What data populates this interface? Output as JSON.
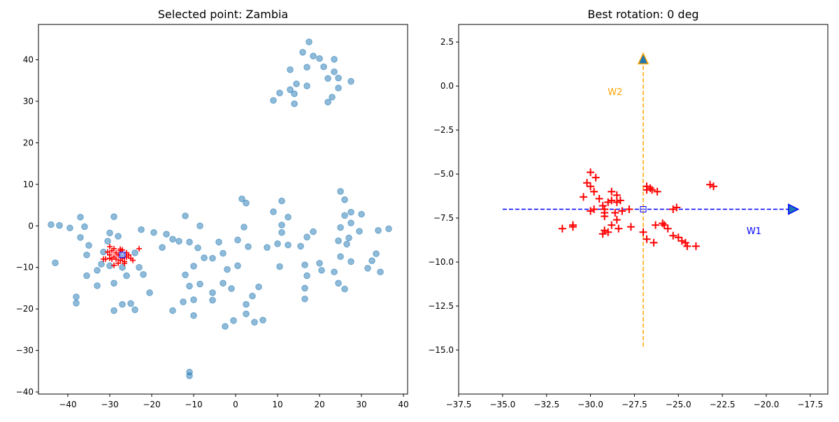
{
  "chart_data": [
    {
      "type": "scatter",
      "title": "Selected point: Zambia",
      "xlim": [
        -47,
        41
      ],
      "ylim": [
        -40.5,
        48.5
      ],
      "xticks": [
        -40,
        -30,
        -20,
        -10,
        0,
        10,
        20,
        30,
        40
      ],
      "xtick_labels": [
        "−40",
        "−30",
        "−20",
        "−10",
        "0",
        "10",
        "20",
        "30",
        "40"
      ],
      "yticks": [
        -40,
        -30,
        -20,
        -10,
        0,
        10,
        20,
        30,
        40
      ],
      "ytick_labels": [
        "−40",
        "−30",
        "−20",
        "−10",
        "0",
        "10",
        "20",
        "30",
        "40"
      ],
      "colors": {
        "points": "#1f77b4",
        "neighbors": "#ff0000",
        "selected": "#0000ff"
      },
      "series": [
        {
          "marker": "circle",
          "points": [
            [
              -44,
              0.3
            ],
            [
              -42,
              0.1
            ],
            [
              -39.5,
              -0.5
            ],
            [
              -37,
              2.1
            ],
            [
              -36,
              -0.2
            ],
            [
              -35,
              -4.7
            ],
            [
              -35.5,
              -7
            ],
            [
              -37,
              -2.8
            ],
            [
              -35.5,
              -12
            ],
            [
              -33,
              -14.4
            ],
            [
              -33,
              -10.7
            ],
            [
              -32,
              -9.2
            ],
            [
              -31.5,
              -6.3
            ],
            [
              -30.5,
              -3.7
            ],
            [
              -30,
              -1.7
            ],
            [
              -30,
              -9.6
            ],
            [
              -29,
              2.2
            ],
            [
              -29,
              -13.8
            ],
            [
              -29,
              -20.4
            ],
            [
              -28,
              -2.5
            ],
            [
              -27,
              -10
            ],
            [
              -26,
              -12
            ],
            [
              -27,
              -18.9
            ],
            [
              -25,
              -18.7
            ],
            [
              -24,
              -20.2
            ],
            [
              -23,
              -10
            ],
            [
              -22,
              -11.7
            ],
            [
              -22.5,
              -0.9
            ],
            [
              -24,
              -6.5
            ],
            [
              -20.5,
              -16.1
            ],
            [
              -19.5,
              -1.6
            ],
            [
              -17.5,
              -5.2
            ],
            [
              -16.5,
              -2
            ],
            [
              -15,
              -3.2
            ],
            [
              -15,
              -20.4
            ],
            [
              -13.5,
              -3.7
            ],
            [
              -12,
              2.4
            ],
            [
              -12.5,
              -18.3
            ],
            [
              -12,
              -11.8
            ],
            [
              -11,
              -3.9
            ],
            [
              -11,
              -14.5
            ],
            [
              -10,
              -9.7
            ],
            [
              -10,
              -17.8
            ],
            [
              -10,
              -21.6
            ],
            [
              -9,
              -5.3
            ],
            [
              -8.5,
              0
            ],
            [
              -8.5,
              -14
            ],
            [
              -7.5,
              -7.7
            ],
            [
              -5.5,
              -7.8
            ],
            [
              -5.5,
              -16.1
            ],
            [
              -5.5,
              -17.9
            ],
            [
              -4,
              -3.9
            ],
            [
              -3,
              -6.6
            ],
            [
              -3,
              -13.8
            ],
            [
              -2.5,
              -24.2
            ],
            [
              -2,
              -10.5
            ],
            [
              -1,
              -15.1
            ],
            [
              -0.5,
              -22.8
            ],
            [
              0.5,
              -9.6
            ],
            [
              0.5,
              -3.4
            ],
            [
              1.5,
              6.5
            ],
            [
              2,
              -0.3
            ],
            [
              2.5,
              5.5
            ],
            [
              3,
              -5
            ],
            [
              2.5,
              -18.9
            ],
            [
              2.5,
              -21.2
            ],
            [
              4,
              -16.9
            ],
            [
              4.5,
              -23.2
            ],
            [
              5.5,
              -14.7
            ],
            [
              6.5,
              -22.7
            ],
            [
              7.5,
              -5.2
            ],
            [
              9,
              3.4
            ],
            [
              10,
              -4.3
            ],
            [
              10.5,
              -9.8
            ],
            [
              11,
              6
            ],
            [
              11,
              0.2
            ],
            [
              11,
              -1.6
            ],
            [
              12.5,
              -4.6
            ],
            [
              12.5,
              2.1
            ],
            [
              15.5,
              -4.9
            ],
            [
              16.5,
              -9.4
            ],
            [
              16.5,
              -15
            ],
            [
              16.5,
              -17.6
            ],
            [
              17,
              -2.7
            ],
            [
              17,
              -12
            ],
            [
              18.5,
              -1.4
            ],
            [
              20,
              -9
            ],
            [
              20.5,
              -10.7
            ],
            [
              23.5,
              -11.1
            ],
            [
              24.5,
              -13.8
            ],
            [
              24.5,
              -3.6
            ],
            [
              25,
              -7.4
            ],
            [
              25,
              -0.4
            ],
            [
              25,
              8.3
            ],
            [
              26,
              -15.2
            ],
            [
              26,
              2.5
            ],
            [
              26,
              6.3
            ],
            [
              26.5,
              -4.4
            ],
            [
              27,
              -2.9
            ],
            [
              27.5,
              3.3
            ],
            [
              27.5,
              0.7
            ],
            [
              27.5,
              -8.6
            ],
            [
              29.5,
              -1.3
            ],
            [
              30,
              2.8
            ],
            [
              31.5,
              -10.2
            ],
            [
              32.5,
              -8.4
            ],
            [
              33.5,
              -6.7
            ],
            [
              34,
              -1.1
            ],
            [
              34.5,
              -11.1
            ],
            [
              36.5,
              -0.7
            ],
            [
              -11,
              -35.2
            ],
            [
              -11,
              -36.1
            ],
            [
              9,
              30.2
            ],
            [
              10.5,
              32
            ],
            [
              13,
              37.6
            ],
            [
              13,
              32.8
            ],
            [
              14,
              29.4
            ],
            [
              14,
              31.8
            ],
            [
              14.5,
              34.2
            ],
            [
              16,
              41.8
            ],
            [
              17,
              38.2
            ],
            [
              17,
              33.7
            ],
            [
              17.5,
              44.3
            ],
            [
              18.5,
              40.9
            ],
            [
              20,
              40.3
            ],
            [
              21,
              38.3
            ],
            [
              22,
              29.8
            ],
            [
              22,
              35.5
            ],
            [
              23,
              31
            ],
            [
              23.5,
              40.1
            ],
            [
              23.5,
              37.1
            ],
            [
              24.5,
              33.2
            ],
            [
              24.5,
              35.6
            ],
            [
              27.5,
              34.8
            ],
            [
              -43,
              -8.9
            ],
            [
              -38,
              -17.1
            ],
            [
              -38,
              -18.6
            ]
          ]
        },
        {
          "marker": "plus",
          "points": [
            [
              -30,
              -5
            ],
            [
              -30.5,
              -6.3
            ],
            [
              -29.5,
              -6
            ],
            [
              -29,
              -5.5
            ],
            [
              -28.5,
              -6.5
            ],
            [
              -28,
              -7
            ],
            [
              -29,
              -7.5
            ],
            [
              -29.5,
              -8
            ],
            [
              -30,
              -7
            ],
            [
              -28.5,
              -8
            ],
            [
              -27.5,
              -8.3
            ],
            [
              -27,
              -7.8
            ],
            [
              -26.5,
              -8.6
            ],
            [
              -26,
              -7.5
            ],
            [
              -25.5,
              -7
            ],
            [
              -25,
              -7.8
            ],
            [
              -24.5,
              -8.3
            ],
            [
              -26,
              -6.5
            ],
            [
              -27.5,
              -6
            ],
            [
              -27,
              -5.8
            ],
            [
              -31,
              -8
            ],
            [
              -31.5,
              -8
            ],
            [
              -23,
              -5.5
            ],
            [
              -28,
              -9
            ],
            [
              -29,
              -9.5
            ],
            [
              -26.5,
              -9
            ],
            [
              -27.5,
              -5.6
            ],
            [
              -30,
              -7.8
            ]
          ]
        },
        {
          "marker": "square",
          "points": [
            [
              -27,
              -7
            ]
          ]
        }
      ]
    },
    {
      "type": "scatter",
      "title": "Best rotation: 0 deg",
      "xlim": [
        -37.5,
        -16.5
      ],
      "ylim": [
        -17.5,
        3.5
      ],
      "xticks": [
        -37.5,
        -35,
        -32.5,
        -30,
        -27.5,
        -25,
        -22.5,
        -20,
        -17.5
      ],
      "xtick_labels": [
        "−37.5",
        "−35.0",
        "−32.5",
        "−30.0",
        "−27.5",
        "−25.0",
        "−22.5",
        "−20.0",
        "−17.5"
      ],
      "yticks": [
        -15,
        -12.5,
        -10,
        -7.5,
        -5,
        -2.5,
        0,
        2.5
      ],
      "ytick_labels": [
        "−15.0",
        "−12.5",
        "−10.0",
        "−7.5",
        "−5.0",
        "−2.5",
        "0.0",
        "2.5"
      ],
      "colors": {
        "neighbors": "#ff0000",
        "selected": "#0000ff",
        "w1": "#0000ff",
        "w2": "#ffa500",
        "arrow_fill": "#1f77b4",
        "w2_head_edge": "#ffa500"
      },
      "series": [
        {
          "marker": "plus",
          "points": [
            [
              -30,
              -4.9
            ],
            [
              -29.7,
              -5.2
            ],
            [
              -30.2,
              -5.5
            ],
            [
              -30,
              -5.7
            ],
            [
              -29.8,
              -6
            ],
            [
              -30.4,
              -6.3
            ],
            [
              -29.5,
              -6.4
            ],
            [
              -29,
              -6.6
            ],
            [
              -28.8,
              -6.5
            ],
            [
              -28.5,
              -6.6
            ],
            [
              -28.3,
              -6.5
            ],
            [
              -28.8,
              -6
            ],
            [
              -28.5,
              -6.2
            ],
            [
              -29.3,
              -6.8
            ],
            [
              -29.8,
              -7
            ],
            [
              -30,
              -7.1
            ],
            [
              -29.2,
              -7
            ],
            [
              -28.6,
              -7.2
            ],
            [
              -28.2,
              -7.1
            ],
            [
              -27.8,
              -7
            ],
            [
              -29.2,
              -7.2
            ],
            [
              -29.2,
              -7.4
            ],
            [
              -28.5,
              -7.6
            ],
            [
              -28.8,
              -7.9
            ],
            [
              -28.4,
              -8.1
            ],
            [
              -29.2,
              -8.2
            ],
            [
              -29,
              -8.3
            ],
            [
              -29.3,
              -8.4
            ],
            [
              -27.7,
              -8
            ],
            [
              -31.6,
              -8.1
            ],
            [
              -31,
              -8
            ],
            [
              -31,
              -7.9
            ],
            [
              -26.8,
              -5.7
            ],
            [
              -26.6,
              -5.8
            ],
            [
              -26.5,
              -5.9
            ],
            [
              -26.2,
              -6
            ],
            [
              -26.8,
              -5.9
            ],
            [
              -25.3,
              -7
            ],
            [
              -25.1,
              -6.9
            ],
            [
              -26.3,
              -7.9
            ],
            [
              -25.9,
              -7.8
            ],
            [
              -25.8,
              -7.9
            ],
            [
              -25.6,
              -8.1
            ],
            [
              -25.3,
              -8.5
            ],
            [
              -25,
              -8.6
            ],
            [
              -24.8,
              -8.8
            ],
            [
              -24.6,
              -8.9
            ],
            [
              -24.5,
              -9.1
            ],
            [
              -24,
              -9.1
            ],
            [
              -26.4,
              -8.9
            ],
            [
              -26.8,
              -8.7
            ],
            [
              -27,
              -8.3
            ],
            [
              -23.2,
              -5.6
            ],
            [
              -23,
              -5.7
            ]
          ]
        },
        {
          "marker": "square",
          "points": [
            [
              -27,
              -7
            ]
          ]
        }
      ],
      "vectors": [
        {
          "label": "W1",
          "from": [
            -35,
            -7
          ],
          "to": [
            -18.5,
            -7
          ],
          "label_pos": [
            -20.7,
            -8.4
          ]
        },
        {
          "label": "W2",
          "from": [
            -27,
            -14.8
          ],
          "to": [
            -27,
            1.5
          ],
          "label_pos": [
            -28.6,
            -0.5
          ]
        }
      ]
    }
  ]
}
